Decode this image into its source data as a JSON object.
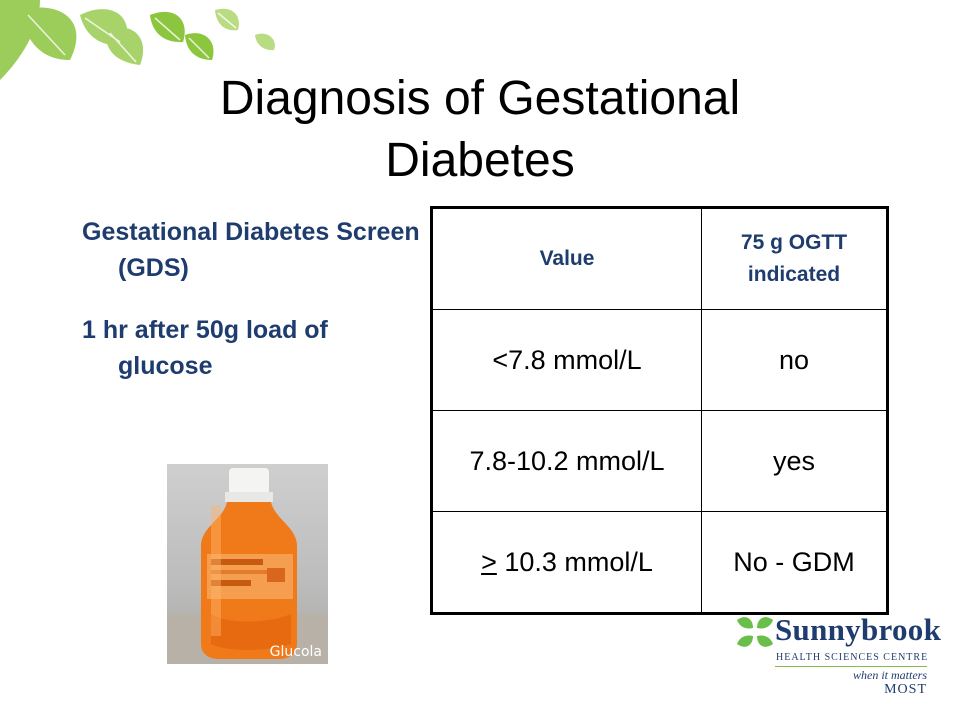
{
  "slide": {
    "title": "Diagnosis of Gestational Diabetes",
    "left": {
      "paragraph1": "Gestational Diabetes Screen (GDS)",
      "paragraph2": "1 hr after 50g load of glucose"
    },
    "table": {
      "headers": [
        "Value",
        "75 g OGTT indicated"
      ],
      "rows": [
        {
          "value": "<7.8 mmol/L",
          "ogtt": "no"
        },
        {
          "value": "7.8-10.2 mmol/L",
          "ogtt": "yes"
        },
        {
          "value_symbol": ">",
          "value_rest": " 10.3 mmol/L",
          "ogtt": "No - GDM"
        }
      ]
    },
    "photo": {
      "label": "Glucola"
    },
    "logo": {
      "name": "Sunnybrook",
      "subtitle": "HEALTH SCIENCES CENTRE",
      "tagline1": "when it matters",
      "tagline2": "MOST"
    },
    "colors": {
      "accent_text": "#1f3c6f",
      "leaf_green": "#8cc63f",
      "drink_orange": "#f07a1a"
    }
  }
}
